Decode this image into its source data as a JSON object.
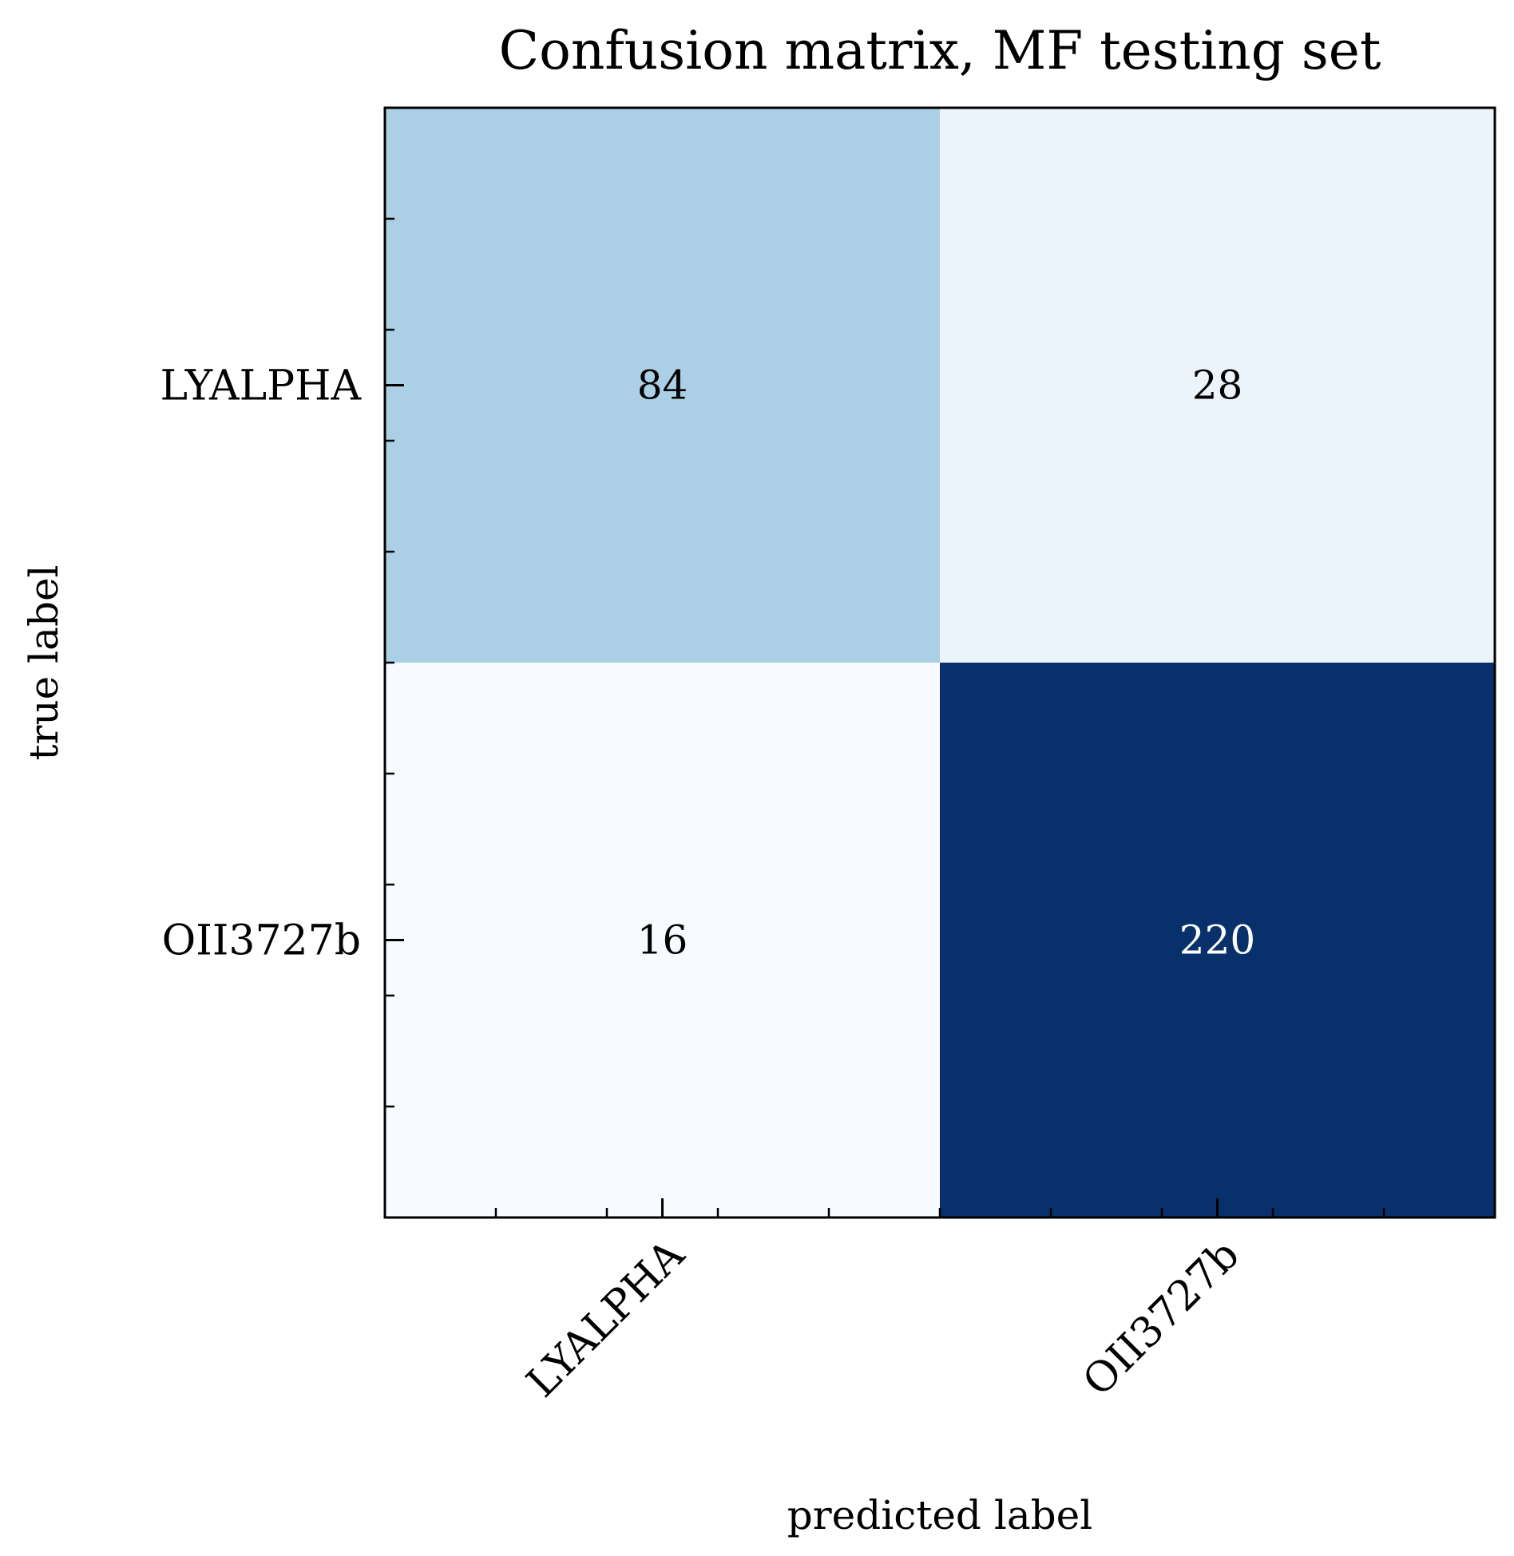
{
  "chart_data": {
    "type": "heatmap",
    "title": "Confusion matrix, MF testing set",
    "xlabel": "predicted label",
    "ylabel": "true label",
    "x_categories": [
      "LYALPHA",
      "OII3727b"
    ],
    "y_categories": [
      "LYALPHA",
      "OII3727b"
    ],
    "values": [
      [
        84,
        28
      ],
      [
        16,
        220
      ]
    ],
    "colormap": "Blues",
    "colors": {
      "min": "#f7fbff",
      "max": "#08306b",
      "text_dark": "#000000",
      "text_light": "#ffffff"
    },
    "grid": false,
    "legend": "none"
  }
}
